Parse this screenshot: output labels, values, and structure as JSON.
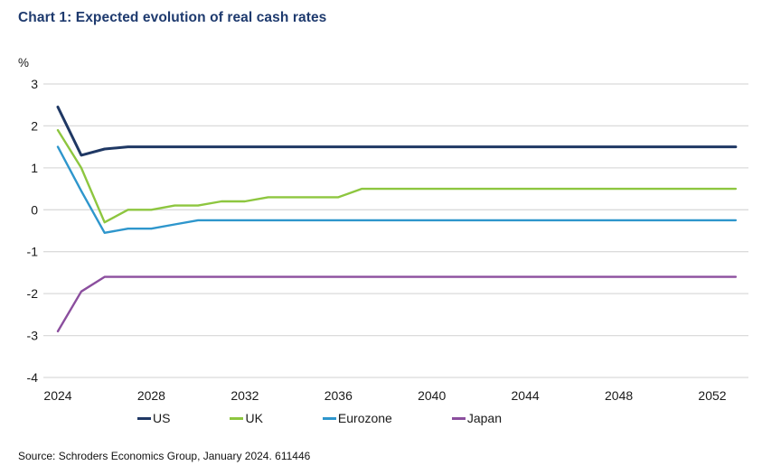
{
  "page": {
    "title": "Chart 1: Expected evolution of real cash rates",
    "source": "Source: Schroders Economics Group, January 2024. 611446"
  },
  "chart_data": {
    "type": "line",
    "title": "Chart 1: Expected evolution of real cash rates",
    "xlabel": "",
    "ylabel": "",
    "y_unit_label": "%",
    "ylim": [
      -4,
      3
    ],
    "xlim": [
      2024,
      2053
    ],
    "y_ticks": [
      3,
      2,
      1,
      0,
      -1,
      -2,
      -3,
      -4
    ],
    "x_ticks": [
      2024,
      2028,
      2032,
      2036,
      2040,
      2044,
      2048,
      2052
    ],
    "grid": "horizontal-only",
    "gridline_color": "#dbdbdb",
    "legend_position": "bottom",
    "x": [
      2024,
      2025,
      2026,
      2027,
      2028,
      2029,
      2030,
      2031,
      2032,
      2033,
      2034,
      2035,
      2036,
      2037,
      2038,
      2039,
      2040,
      2041,
      2042,
      2043,
      2044,
      2045,
      2046,
      2047,
      2048,
      2049,
      2050,
      2051,
      2052,
      2053
    ],
    "series": [
      {
        "name": "US",
        "color": "#1f3864",
        "line_width": 3,
        "values": [
          2.45,
          1.3,
          1.45,
          1.5,
          1.5,
          1.5,
          1.5,
          1.5,
          1.5,
          1.5,
          1.5,
          1.5,
          1.5,
          1.5,
          1.5,
          1.5,
          1.5,
          1.5,
          1.5,
          1.5,
          1.5,
          1.5,
          1.5,
          1.5,
          1.5,
          1.5,
          1.5,
          1.5,
          1.5,
          1.5
        ]
      },
      {
        "name": "UK",
        "color": "#8dc63f",
        "line_width": 2.4,
        "values": [
          1.9,
          1.0,
          -0.3,
          0.0,
          0.0,
          0.1,
          0.1,
          0.2,
          0.2,
          0.3,
          0.3,
          0.3,
          0.3,
          0.5,
          0.5,
          0.5,
          0.5,
          0.5,
          0.5,
          0.5,
          0.5,
          0.5,
          0.5,
          0.5,
          0.5,
          0.5,
          0.5,
          0.5,
          0.5,
          0.5
        ]
      },
      {
        "name": "Eurozone",
        "color": "#2e96cc",
        "line_width": 2.4,
        "values": [
          1.5,
          0.45,
          -0.55,
          -0.45,
          -0.45,
          -0.35,
          -0.25,
          -0.25,
          -0.25,
          -0.25,
          -0.25,
          -0.25,
          -0.25,
          -0.25,
          -0.25,
          -0.25,
          -0.25,
          -0.25,
          -0.25,
          -0.25,
          -0.25,
          -0.25,
          -0.25,
          -0.25,
          -0.25,
          -0.25,
          -0.25,
          -0.25,
          -0.25,
          -0.25
        ]
      },
      {
        "name": "Japan",
        "color": "#8b4e9e",
        "line_width": 2.4,
        "values": [
          -2.9,
          -1.95,
          -1.6,
          -1.6,
          -1.6,
          -1.6,
          -1.6,
          -1.6,
          -1.6,
          -1.6,
          -1.6,
          -1.6,
          -1.6,
          -1.6,
          -1.6,
          -1.6,
          -1.6,
          -1.6,
          -1.6,
          -1.6,
          -1.6,
          -1.6,
          -1.6,
          -1.6,
          -1.6,
          -1.6,
          -1.6,
          -1.6,
          -1.6,
          -1.6
        ]
      }
    ]
  }
}
